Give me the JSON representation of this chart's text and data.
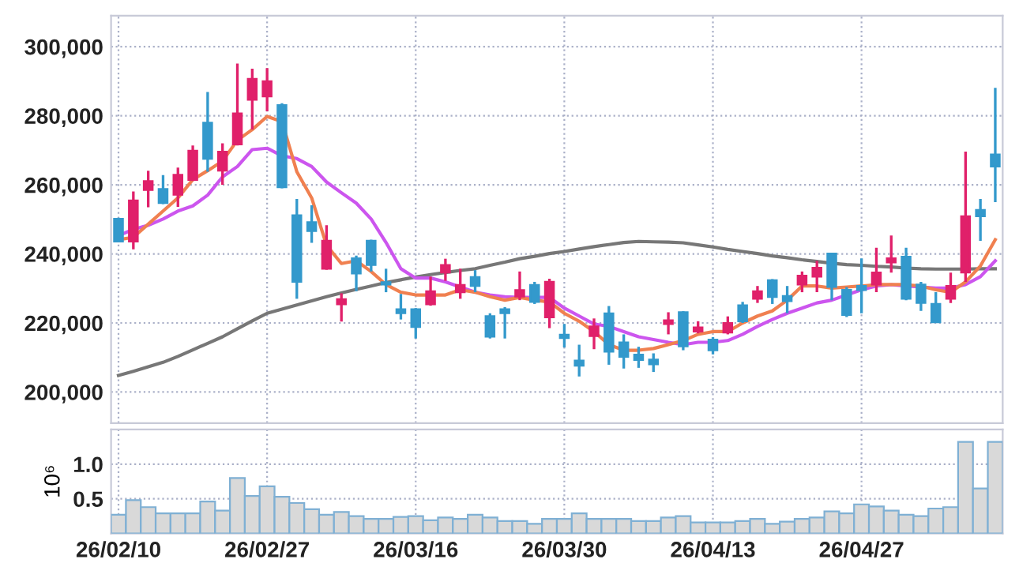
{
  "chart_data": [
    {
      "type": "candlestick",
      "categories": [
        null,
        null,
        null,
        null,
        null,
        null,
        null,
        null,
        null,
        null,
        null,
        null,
        null,
        null,
        null,
        null,
        null,
        null,
        null,
        null,
        null,
        null,
        null,
        null,
        null,
        null,
        null,
        null,
        null,
        null,
        null,
        null,
        null,
        null,
        null,
        null,
        null,
        null,
        null,
        null,
        null,
        null,
        null,
        null,
        null,
        null,
        null,
        null,
        null,
        null,
        null,
        null,
        null,
        null,
        null,
        null,
        null,
        null,
        null,
        null
      ],
      "ohlc": [
        [
          250150,
          250450,
          243300,
          243600
        ],
        [
          243600,
          258050,
          241330,
          255460
        ],
        [
          258500,
          264100,
          253500,
          261100
        ],
        [
          258800,
          262800,
          254400,
          254700
        ],
        [
          257100,
          265000,
          253600,
          262900
        ],
        [
          261400,
          271400,
          261100,
          269900
        ],
        [
          278000,
          286900,
          263800,
          267500
        ],
        [
          264100,
          272000,
          260000,
          269600
        ],
        [
          271700,
          295100,
          271400,
          280700
        ],
        [
          284600,
          293600,
          276000,
          290700
        ],
        [
          285600,
          293800,
          281300,
          290000
        ],
        [
          283100,
          283600,
          259000,
          259300
        ],
        [
          251200,
          255900,
          227000,
          231900
        ],
        [
          249200,
          254100,
          243200,
          246600
        ],
        [
          235700,
          248300,
          235400,
          243800
        ],
        [
          225400,
          228600,
          220400,
          226900
        ],
        [
          238700,
          239500,
          229200,
          234300
        ],
        [
          243800,
          244100,
          234900,
          236800
        ],
        [
          231800,
          235700,
          228900,
          231100
        ],
        [
          224000,
          228400,
          221000,
          222800
        ],
        [
          224000,
          224300,
          215500,
          218800
        ],
        [
          225400,
          233400,
          225000,
          229200
        ],
        [
          234600,
          238600,
          232200,
          236800
        ],
        [
          228900,
          235700,
          227000,
          231000
        ],
        [
          233300,
          235300,
          228900,
          230700
        ],
        [
          222000,
          222800,
          215500,
          216000
        ],
        [
          224000,
          224600,
          215500,
          222800
        ],
        [
          227600,
          234900,
          226600,
          229500
        ],
        [
          231000,
          231900,
          225500,
          226100
        ],
        [
          221600,
          232800,
          218500,
          231900
        ],
        [
          216600,
          219700,
          212900,
          215600
        ],
        [
          209100,
          213700,
          204500,
          207600
        ],
        [
          216200,
          221300,
          212400,
          219000
        ],
        [
          222800,
          224900,
          207900,
          211700
        ],
        [
          214400,
          216700,
          206800,
          210200
        ],
        [
          210800,
          213100,
          207000,
          209300
        ],
        [
          209400,
          211200,
          205800,
          208000
        ],
        [
          219700,
          223100,
          216700,
          220800
        ],
        [
          223100,
          223400,
          212100,
          213200
        ],
        [
          217500,
          220500,
          217000,
          218700
        ],
        [
          215200,
          215900,
          210900,
          212100
        ],
        [
          217200,
          221900,
          216700,
          220000
        ],
        [
          225100,
          226100,
          220000,
          220500
        ],
        [
          227000,
          230700,
          225800,
          229200
        ],
        [
          232400,
          232700,
          225500,
          227500
        ],
        [
          227800,
          230700,
          222800,
          226300
        ],
        [
          231100,
          234900,
          228900,
          233700
        ],
        [
          233400,
          238000,
          228900,
          236000
        ],
        [
          240100,
          240100,
          226600,
          230400
        ],
        [
          229600,
          230400,
          221700,
          222300
        ],
        [
          230700,
          238700,
          222800,
          229500
        ],
        [
          231100,
          241800,
          228900,
          234600
        ],
        [
          237500,
          245300,
          234600,
          238700
        ],
        [
          239200,
          241800,
          226600,
          227000
        ],
        [
          231100,
          231900,
          223500,
          225800
        ],
        [
          225500,
          228900,
          220200,
          220200
        ],
        [
          227000,
          234600,
          225800,
          230700
        ],
        [
          234600,
          269600,
          231900,
          250900
        ],
        [
          252700,
          255900,
          243800,
          250900
        ],
        [
          268800,
          288100,
          255000,
          265300
        ]
      ],
      "colors": [
        "#3399cc",
        "#e0206a",
        "#e0206a",
        "#3399cc",
        "#e0206a",
        "#e0206a",
        "#3399cc",
        "#e0206a",
        "#e0206a",
        "#e0206a",
        "#e0206a",
        "#3399cc",
        "#3399cc",
        "#3399cc",
        "#e0206a",
        "#e0206a",
        "#3399cc",
        "#3399cc",
        "#3399cc",
        "#3399cc",
        "#3399cc",
        "#e0206a",
        "#e0206a",
        "#e0206a",
        "#3399cc",
        "#3399cc",
        "#3399cc",
        "#e0206a",
        "#3399cc",
        "#e0206a",
        "#3399cc",
        "#3399cc",
        "#e0206a",
        "#3399cc",
        "#3399cc",
        "#3399cc",
        "#3399cc",
        "#e0206a",
        "#3399cc",
        "#e0206a",
        "#3399cc",
        "#e0206a",
        "#3399cc",
        "#e0206a",
        "#3399cc",
        "#3399cc",
        "#e0206a",
        "#e0206a",
        "#3399cc",
        "#3399cc",
        "#3399cc",
        "#e0206a",
        "#e0206a",
        "#3399cc",
        "#3399cc",
        "#3399cc",
        "#e0206a",
        "#e0206a",
        "#3399cc",
        "#3399cc"
      ],
      "series": [
        {
          "type": "line",
          "color": "#777777",
          "values": [
            204800,
            206000,
            207300,
            208600,
            210300,
            212200,
            214100,
            216000,
            218300,
            220600,
            222800,
            224000,
            225200,
            226400,
            227600,
            228700,
            229700,
            230700,
            231700,
            232500,
            233300,
            234000,
            234600,
            235200,
            235700,
            236700,
            237600,
            238600,
            239300,
            240100,
            240700,
            241400,
            242100,
            242700,
            243300,
            243600,
            243500,
            243400,
            243200,
            242600,
            242000,
            241300,
            240700,
            240100,
            239400,
            238900,
            238300,
            237800,
            237300,
            236900,
            236700,
            236400,
            236200,
            235900,
            235700,
            235600,
            235600,
            235600,
            235700,
            235700
          ]
        },
        {
          "type": "line",
          "color": "#cc55ee",
          "values": [
            245300,
            247100,
            248300,
            250100,
            252400,
            253900,
            257000,
            262300,
            265300,
            270200,
            270600,
            268400,
            267600,
            265300,
            260800,
            257700,
            254700,
            250100,
            243300,
            235700,
            233000,
            233000,
            231900,
            230400,
            228900,
            228100,
            227600,
            227400,
            227400,
            227400,
            224300,
            222000,
            219700,
            219000,
            217500,
            216000,
            215200,
            214400,
            213700,
            214400,
            214400,
            214900,
            216700,
            219000,
            221000,
            222800,
            224300,
            225800,
            226600,
            228100,
            229600,
            230700,
            231100,
            230700,
            230400,
            230100,
            230100,
            231100,
            233400,
            238000
          ]
        },
        {
          "type": "line",
          "color": "#f08050",
          "values": [
            244100,
            244800,
            248600,
            252400,
            256200,
            261500,
            264100,
            266900,
            272900,
            276000,
            279800,
            278300,
            263800,
            256200,
            242500,
            237200,
            238000,
            234900,
            231100,
            228900,
            228100,
            228100,
            228100,
            229600,
            228900,
            227600,
            226600,
            227400,
            226600,
            226100,
            222800,
            220500,
            217500,
            213700,
            212100,
            212100,
            212600,
            213700,
            214900,
            216700,
            217500,
            217500,
            220000,
            222000,
            223500,
            226600,
            230700,
            230700,
            230100,
            230400,
            230700,
            231100,
            231100,
            231100,
            230700,
            229600,
            228900,
            231900,
            236500,
            244100
          ]
        }
      ],
      "ylim": [
        191000,
        309000
      ],
      "yticks": [
        {
          "value": 200000,
          "label": "200,000"
        },
        {
          "value": 220000,
          "label": "220,000"
        },
        {
          "value": 240000,
          "label": "240,000"
        },
        {
          "value": 260000,
          "label": "260,000"
        },
        {
          "value": 280000,
          "label": "280,000"
        },
        {
          "value": 300000,
          "label": "300,000"
        }
      ],
      "grid": true,
      "tick_labels": "y"
    },
    {
      "type": "bar",
      "ylabel": "10⁶",
      "categories": [
        "26/02/10",
        null,
        null,
        null,
        null,
        null,
        null,
        null,
        null,
        null,
        "26/02/27",
        null,
        null,
        null,
        null,
        null,
        null,
        null,
        null,
        null,
        "26/03/16",
        null,
        null,
        null,
        null,
        null,
        null,
        null,
        null,
        null,
        "26/03/30",
        null,
        null,
        null,
        null,
        null,
        null,
        null,
        null,
        null,
        "26/04/13",
        null,
        null,
        null,
        null,
        null,
        null,
        null,
        null,
        null,
        "26/04/27",
        null,
        null,
        null,
        null,
        null,
        null,
        null,
        null,
        null
      ],
      "values": [
        0.27,
        0.48,
        0.38,
        0.29,
        0.29,
        0.29,
        0.46,
        0.33,
        0.8,
        0.54,
        0.68,
        0.53,
        0.44,
        0.35,
        0.27,
        0.31,
        0.25,
        0.21,
        0.21,
        0.24,
        0.25,
        0.19,
        0.23,
        0.21,
        0.27,
        0.23,
        0.18,
        0.18,
        0.14,
        0.21,
        0.21,
        0.29,
        0.21,
        0.21,
        0.21,
        0.18,
        0.18,
        0.23,
        0.25,
        0.16,
        0.16,
        0.16,
        0.18,
        0.21,
        0.14,
        0.17,
        0.21,
        0.23,
        0.32,
        0.29,
        0.42,
        0.39,
        0.33,
        0.27,
        0.25,
        0.36,
        0.38,
        1.32,
        0.65,
        1.32
      ],
      "color": "#d9d9d9",
      "ylim": [
        0,
        1.5
      ],
      "yticks": [
        {
          "value": 0.5,
          "label": "0.5"
        },
        {
          "value": 1,
          "label": "1.0"
        }
      ],
      "grid": true
    }
  ]
}
